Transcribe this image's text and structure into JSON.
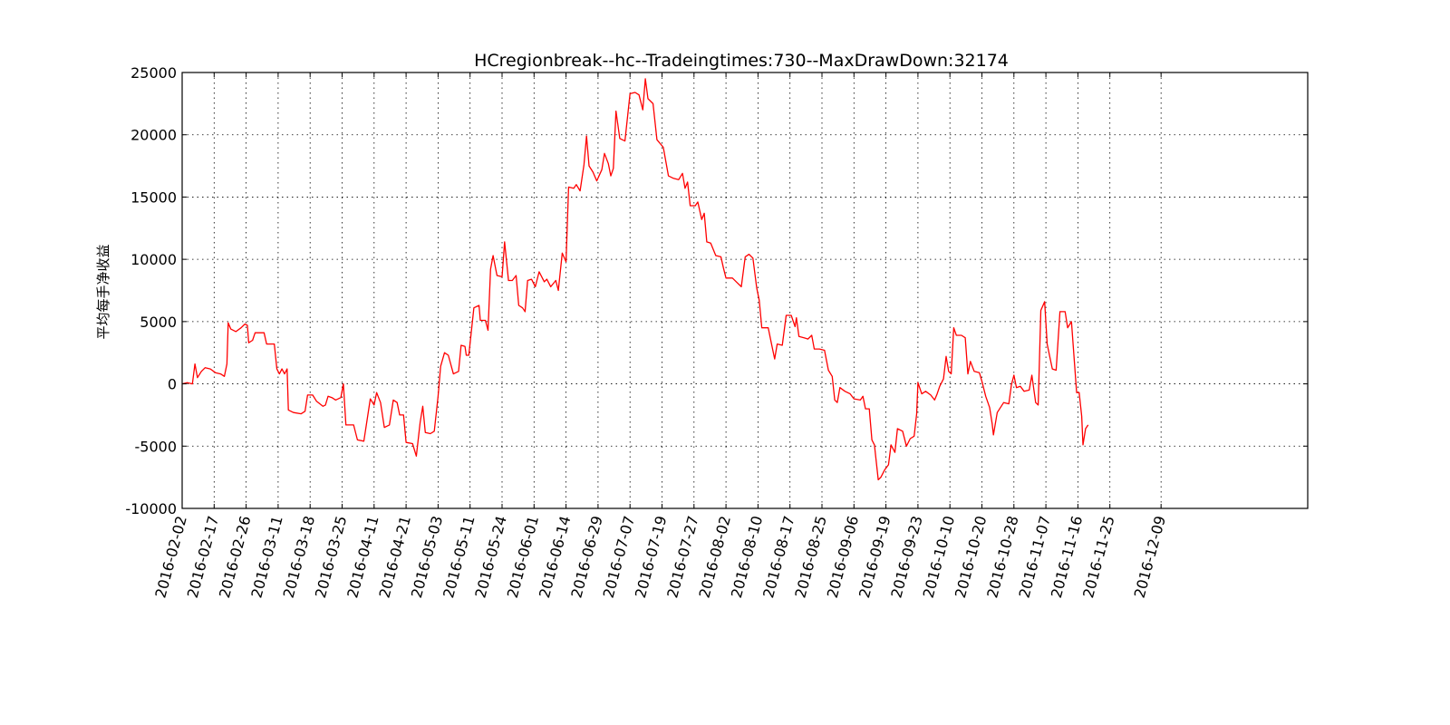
{
  "chart_data": {
    "type": "line",
    "title": "HCregionbreak--hc--Tradeingtimes:730--MaxDrawDown:32174",
    "xlabel": "",
    "ylabel": "平均每手净收益",
    "ylim": [
      -10000,
      25000
    ],
    "yticks": [
      -10000,
      -5000,
      0,
      5000,
      10000,
      15000,
      20000,
      25000
    ],
    "xlim": [
      0,
      730
    ],
    "xticks": [
      {
        "label": "2016-02-02",
        "x": 0
      },
      {
        "label": "2016-02-17",
        "x": 25
      },
      {
        "label": "2016-02-26",
        "x": 50
      },
      {
        "label": "2016-03-11",
        "x": 75
      },
      {
        "label": "2016-03-18",
        "x": 100
      },
      {
        "label": "2016-03-25",
        "x": 125
      },
      {
        "label": "2016-04-11",
        "x": 150
      },
      {
        "label": "2016-04-21",
        "x": 175
      },
      {
        "label": "2016-05-03",
        "x": 200
      },
      {
        "label": "2016-05-11",
        "x": 225
      },
      {
        "label": "2016-05-24",
        "x": 250
      },
      {
        "label": "2016-06-01",
        "x": 275
      },
      {
        "label": "2016-06-14",
        "x": 300
      },
      {
        "label": "2016-06-29",
        "x": 325
      },
      {
        "label": "2016-07-07",
        "x": 350
      },
      {
        "label": "2016-07-19",
        "x": 375
      },
      {
        "label": "2016-07-27",
        "x": 400
      },
      {
        "label": "2016-08-02",
        "x": 425
      },
      {
        "label": "2016-08-10",
        "x": 450
      },
      {
        "label": "2016-08-17",
        "x": 475
      },
      {
        "label": "2016-08-25",
        "x": 500
      },
      {
        "label": "2016-09-06",
        "x": 525
      },
      {
        "label": "2016-09-19",
        "x": 550
      },
      {
        "label": "2016-09-23",
        "x": 575
      },
      {
        "label": "2016-10-10",
        "x": 600
      },
      {
        "label": "2016-10-20",
        "x": 625
      },
      {
        "label": "2016-10-28",
        "x": 650
      },
      {
        "label": "2016-11-07",
        "x": 675
      },
      {
        "label": "2016-11-16",
        "x": 700
      },
      {
        "label": "2016-11-25",
        "x": 725
      },
      {
        "label": "2016-12-09",
        "x": 765
      }
    ],
    "grid": true,
    "series": [
      {
        "color": "#ff0000",
        "points": [
          [
            0,
            0
          ],
          [
            4,
            100
          ],
          [
            8,
            0
          ],
          [
            10,
            1600
          ],
          [
            12,
            500
          ],
          [
            15,
            1000
          ],
          [
            18,
            1300
          ],
          [
            22,
            1200
          ],
          [
            26,
            900
          ],
          [
            30,
            800
          ],
          [
            33,
            600
          ],
          [
            35,
            1600
          ],
          [
            36,
            4900
          ],
          [
            38,
            4400
          ],
          [
            42,
            4200
          ],
          [
            46,
            4500
          ],
          [
            49,
            4800
          ],
          [
            51,
            4700
          ],
          [
            52,
            3300
          ],
          [
            55,
            3500
          ],
          [
            57,
            4100
          ],
          [
            64,
            4100
          ],
          [
            66,
            3200
          ],
          [
            72,
            3200
          ],
          [
            74,
            1200
          ],
          [
            76,
            800
          ],
          [
            78,
            1200
          ],
          [
            80,
            800
          ],
          [
            82,
            1200
          ],
          [
            83,
            -2100
          ],
          [
            87,
            -2300
          ],
          [
            93,
            -2400
          ],
          [
            96,
            -2200
          ],
          [
            98,
            -900
          ],
          [
            102,
            -900
          ],
          [
            105,
            -1400
          ],
          [
            110,
            -1800
          ],
          [
            112,
            -1700
          ],
          [
            114,
            -1000
          ],
          [
            117,
            -1100
          ],
          [
            120,
            -1300
          ],
          [
            124,
            -1100
          ],
          [
            126,
            0
          ],
          [
            128,
            -3300
          ],
          [
            134,
            -3300
          ],
          [
            137,
            -4500
          ],
          [
            142,
            -4600
          ],
          [
            147,
            -1200
          ],
          [
            150,
            -1700
          ],
          [
            152,
            -700
          ],
          [
            155,
            -1500
          ],
          [
            158,
            -3500
          ],
          [
            162,
            -3300
          ],
          [
            165,
            -1300
          ],
          [
            168,
            -1500
          ],
          [
            170,
            -2500
          ],
          [
            173,
            -2500
          ],
          [
            175,
            -4700
          ],
          [
            180,
            -4800
          ],
          [
            183,
            -5800
          ],
          [
            186,
            -3100
          ],
          [
            188,
            -1800
          ],
          [
            190,
            -3900
          ],
          [
            194,
            -4000
          ],
          [
            197,
            -3800
          ],
          [
            200,
            -1000
          ],
          [
            202,
            1400
          ],
          [
            205,
            2500
          ],
          [
            208,
            2300
          ],
          [
            212,
            800
          ],
          [
            216,
            1000
          ],
          [
            218,
            3100
          ],
          [
            221,
            3000
          ],
          [
            222,
            2300
          ],
          [
            224,
            2300
          ],
          [
            228,
            6100
          ],
          [
            232,
            6300
          ],
          [
            233,
            5100
          ],
          [
            237,
            5100
          ],
          [
            239,
            4300
          ],
          [
            241,
            9200
          ],
          [
            243,
            10300
          ],
          [
            246,
            8700
          ],
          [
            250,
            8600
          ],
          [
            252,
            11400
          ],
          [
            255,
            8300
          ],
          [
            258,
            8300
          ],
          [
            261,
            8700
          ],
          [
            263,
            6300
          ],
          [
            266,
            6100
          ],
          [
            268,
            5800
          ],
          [
            270,
            8300
          ],
          [
            273,
            8400
          ],
          [
            276,
            7800
          ],
          [
            279,
            9000
          ],
          [
            283,
            8200
          ],
          [
            285,
            8400
          ],
          [
            288,
            7800
          ],
          [
            292,
            8300
          ],
          [
            294,
            7500
          ],
          [
            297,
            10500
          ],
          [
            300,
            9800
          ],
          [
            302,
            15800
          ],
          [
            306,
            15700
          ],
          [
            308,
            16000
          ],
          [
            311,
            15500
          ],
          [
            314,
            17600
          ],
          [
            316,
            19900
          ],
          [
            318,
            17500
          ],
          [
            321,
            17000
          ],
          [
            324,
            16300
          ],
          [
            328,
            17200
          ],
          [
            330,
            18500
          ],
          [
            333,
            17700
          ],
          [
            335,
            16700
          ],
          [
            337,
            17300
          ],
          [
            339,
            21900
          ],
          [
            342,
            19700
          ],
          [
            346,
            19500
          ],
          [
            350,
            23300
          ],
          [
            354,
            23400
          ],
          [
            357,
            23200
          ],
          [
            360,
            22000
          ],
          [
            362,
            24500
          ],
          [
            364,
            22900
          ],
          [
            368,
            22500
          ],
          [
            371,
            19600
          ],
          [
            376,
            19000
          ],
          [
            380,
            16700
          ],
          [
            384,
            16500
          ],
          [
            388,
            16400
          ],
          [
            391,
            16900
          ],
          [
            393,
            15700
          ],
          [
            395,
            16200
          ],
          [
            397,
            14300
          ],
          [
            401,
            14300
          ],
          [
            403,
            14600
          ],
          [
            406,
            13200
          ],
          [
            408,
            13700
          ],
          [
            410,
            11400
          ],
          [
            413,
            11300
          ],
          [
            415,
            10800
          ],
          [
            417,
            10300
          ],
          [
            421,
            10200
          ],
          [
            423,
            9300
          ],
          [
            425,
            8500
          ],
          [
            430,
            8500
          ],
          [
            434,
            8100
          ],
          [
            437,
            7800
          ],
          [
            440,
            10200
          ],
          [
            443,
            10400
          ],
          [
            446,
            10100
          ],
          [
            449,
            7700
          ],
          [
            451,
            6700
          ],
          [
            453,
            4500
          ],
          [
            458,
            4500
          ],
          [
            461,
            3000
          ],
          [
            463,
            2000
          ],
          [
            465,
            3200
          ],
          [
            469,
            3100
          ],
          [
            472,
            5500
          ],
          [
            476,
            5500
          ],
          [
            479,
            4600
          ],
          [
            480,
            5300
          ],
          [
            482,
            3800
          ],
          [
            486,
            3700
          ],
          [
            489,
            3600
          ],
          [
            492,
            3900
          ],
          [
            494,
            2800
          ],
          [
            498,
            2800
          ],
          [
            502,
            2700
          ],
          [
            505,
            1100
          ],
          [
            508,
            600
          ],
          [
            510,
            -1300
          ],
          [
            512,
            -1500
          ],
          [
            514,
            -300
          ],
          [
            518,
            -600
          ],
          [
            522,
            -800
          ],
          [
            525,
            -1200
          ],
          [
            530,
            -1300
          ],
          [
            532,
            -1000
          ],
          [
            534,
            -2000
          ],
          [
            537,
            -2000
          ],
          [
            539,
            -4500
          ],
          [
            541,
            -4900
          ],
          [
            544,
            -7700
          ],
          [
            546,
            -7500
          ],
          [
            549,
            -6900
          ],
          [
            552,
            -6500
          ],
          [
            554,
            -4900
          ],
          [
            557,
            -5500
          ],
          [
            559,
            -3600
          ],
          [
            563,
            -3800
          ],
          [
            566,
            -5000
          ],
          [
            569,
            -4400
          ],
          [
            572,
            -4200
          ],
          [
            574,
            -2400
          ],
          [
            575,
            100
          ],
          [
            578,
            -800
          ],
          [
            581,
            -600
          ],
          [
            585,
            -900
          ],
          [
            588,
            -1300
          ],
          [
            590,
            -800
          ],
          [
            592,
            -200
          ],
          [
            595,
            400
          ],
          [
            597,
            2200
          ],
          [
            599,
            1000
          ],
          [
            601,
            800
          ],
          [
            603,
            4500
          ],
          [
            605,
            3900
          ],
          [
            609,
            3900
          ],
          [
            612,
            3700
          ],
          [
            614,
            800
          ],
          [
            616,
            1800
          ],
          [
            619,
            1000
          ],
          [
            623,
            900
          ],
          [
            625,
            200
          ],
          [
            628,
            -1000
          ],
          [
            631,
            -1900
          ],
          [
            633,
            -3200
          ],
          [
            634,
            -4100
          ],
          [
            637,
            -2300
          ],
          [
            642,
            -1500
          ],
          [
            646,
            -1600
          ],
          [
            648,
            -100
          ],
          [
            650,
            700
          ],
          [
            652,
            -300
          ],
          [
            655,
            -200
          ],
          [
            658,
            -600
          ],
          [
            662,
            -500
          ],
          [
            664,
            700
          ],
          [
            667,
            -1500
          ],
          [
            669,
            -1700
          ],
          [
            671,
            5900
          ],
          [
            674,
            6600
          ],
          [
            676,
            3200
          ],
          [
            678,
            2200
          ],
          [
            680,
            1200
          ],
          [
            683,
            1100
          ],
          [
            686,
            5800
          ],
          [
            690,
            5800
          ],
          [
            692,
            4500
          ],
          [
            695,
            5000
          ],
          [
            697,
            2100
          ],
          [
            699,
            -700
          ],
          [
            701,
            -700
          ],
          [
            703,
            -2600
          ],
          [
            704,
            -4900
          ],
          [
            706,
            -3600
          ],
          [
            708,
            -3300
          ]
        ]
      }
    ]
  }
}
